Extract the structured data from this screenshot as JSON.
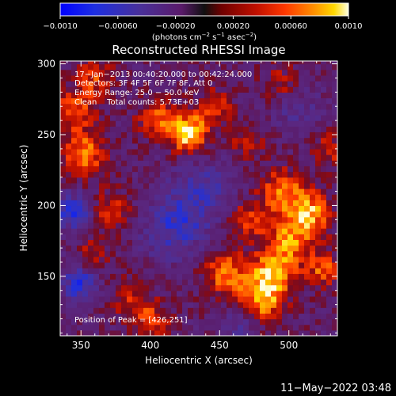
{
  "colorbar": {
    "ticks": [
      {
        "value": -0.001,
        "label": "−0.0010"
      },
      {
        "value": -0.0006,
        "label": "−0.00060"
      },
      {
        "value": -0.0002,
        "label": "−0.00020"
      },
      {
        "value": 0.0002,
        "label": "0.00020"
      },
      {
        "value": 0.0006,
        "label": "0.00060"
      },
      {
        "value": 0.001,
        "label": "0.0010"
      }
    ],
    "range": [
      -0.001,
      0.001
    ],
    "units_prefix": "(photons cm",
    "units_exp1": "−2",
    "units_mid1": " s",
    "units_exp2": "−1",
    "units_mid2": " asec",
    "units_exp3": "−2",
    "units_suffix": ")"
  },
  "info": {
    "time": "17−Jan−2013 00:40:20.000 to 00:42:24.000",
    "detectors": "Detectors: 3F 4F 5F 6F 7F 8F, Att 0",
    "energy": "Energy Range: 25.0 − 50.0 keV",
    "clean": "Clean    Total counts: 5.73E+03",
    "peak": "Position of Peak = [426,251]"
  },
  "timestamp": "11−May−2022 03:48",
  "chart_data": {
    "type": "heatmap",
    "title": "Reconstructed RHESSI Image",
    "xlabel": "Heliocentric X (arcsec)",
    "ylabel": "Heliocentric Y (arcsec)",
    "xlim": [
      335,
      535
    ],
    "ylim": [
      108,
      302
    ],
    "xticks": [
      350,
      400,
      450,
      500
    ],
    "yticks": [
      150,
      200,
      250,
      300
    ],
    "colormap": [
      "#0000ff",
      "#3a2aa0",
      "#4a2a8a",
      "#5a1a6a",
      "#8a1010",
      "#c01000",
      "#ff3800",
      "#ff9000",
      "#ffd800",
      "#ffffe0"
    ],
    "value_range": [
      -0.001,
      0.001
    ],
    "peak": [
      426,
      251
    ],
    "blobs": [
      {
        "x": 427,
        "y": 251,
        "amp": 0.0011,
        "w": 9
      },
      {
        "x": 405,
        "y": 262,
        "amp": 0.0006,
        "w": 10
      },
      {
        "x": 445,
        "y": 268,
        "amp": 0.0005,
        "w": 10
      },
      {
        "x": 352,
        "y": 237,
        "amp": 0.0007,
        "w": 12
      },
      {
        "x": 345,
        "y": 268,
        "amp": 0.0006,
        "w": 10
      },
      {
        "x": 360,
        "y": 290,
        "amp": 0.0005,
        "w": 10
      },
      {
        "x": 372,
        "y": 196,
        "amp": 0.0005,
        "w": 10
      },
      {
        "x": 358,
        "y": 166,
        "amp": 0.0004,
        "w": 9
      },
      {
        "x": 385,
        "y": 135,
        "amp": 0.0004,
        "w": 11
      },
      {
        "x": 400,
        "y": 118,
        "amp": 0.0005,
        "w": 10
      },
      {
        "x": 455,
        "y": 152,
        "amp": 0.0007,
        "w": 12
      },
      {
        "x": 488,
        "y": 152,
        "amp": 0.0008,
        "w": 11
      },
      {
        "x": 480,
        "y": 132,
        "amp": 0.0008,
        "w": 11
      },
      {
        "x": 500,
        "y": 175,
        "amp": 0.0007,
        "w": 12
      },
      {
        "x": 515,
        "y": 195,
        "amp": 0.0008,
        "w": 11
      },
      {
        "x": 495,
        "y": 210,
        "amp": 0.0007,
        "w": 11
      },
      {
        "x": 470,
        "y": 190,
        "amp": 0.0005,
        "w": 10
      },
      {
        "x": 525,
        "y": 155,
        "amp": 0.0006,
        "w": 9
      },
      {
        "x": 530,
        "y": 240,
        "amp": 0.0004,
        "w": 9
      },
      {
        "x": 495,
        "y": 285,
        "amp": 0.0004,
        "w": 10
      },
      {
        "x": 470,
        "y": 245,
        "amp": 0.0004,
        "w": 9
      },
      {
        "x": 440,
        "y": 210,
        "amp": -0.0004,
        "w": 15
      },
      {
        "x": 418,
        "y": 185,
        "amp": -0.0005,
        "w": 16
      },
      {
        "x": 350,
        "y": 145,
        "amp": -0.0006,
        "w": 10
      },
      {
        "x": 345,
        "y": 195,
        "amp": -0.0006,
        "w": 10
      },
      {
        "x": 505,
        "y": 270,
        "amp": -0.0003,
        "w": 12
      },
      {
        "x": 465,
        "y": 118,
        "amp": -0.0004,
        "w": 10
      }
    ]
  }
}
